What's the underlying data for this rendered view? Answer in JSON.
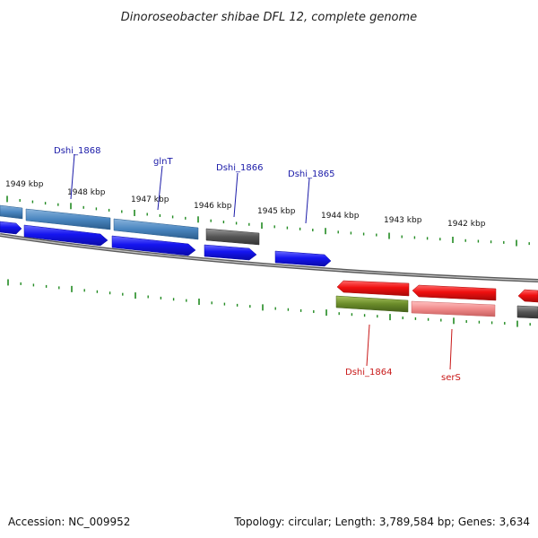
{
  "title": "Dinoroseobacter shibae DFL 12, complete genome",
  "footer": {
    "accession": "Accession: NC_009952",
    "summary": "Topology: circular; Length: 3,789,584 bp; Genes: 3,634"
  },
  "ruler": [
    "1949 kbp",
    "1948 kbp",
    "1947 kbp",
    "1946 kbp",
    "1945 kbp",
    "1944 kbp",
    "1943 kbp",
    "1942 kbp"
  ],
  "gene_labels_top": [
    "Dshi_1868",
    "glnT",
    "Dshi_1866",
    "Dshi_1865"
  ],
  "gene_labels_bottom": [
    "Dshi_1864",
    "serS"
  ],
  "colors": {
    "forward_cds": "#1515f0",
    "reverse_cds": "#f01010",
    "forward_gene_bar": "#4a86c0",
    "reverse_gene_bar": "#f08a8a",
    "pseudo_bar": "#555555",
    "other_bar": "#6b8c2a",
    "ticks": "#228b22",
    "backbone": "#808080",
    "label_blue": "#1a1aa8",
    "label_red": "#c81818"
  }
}
